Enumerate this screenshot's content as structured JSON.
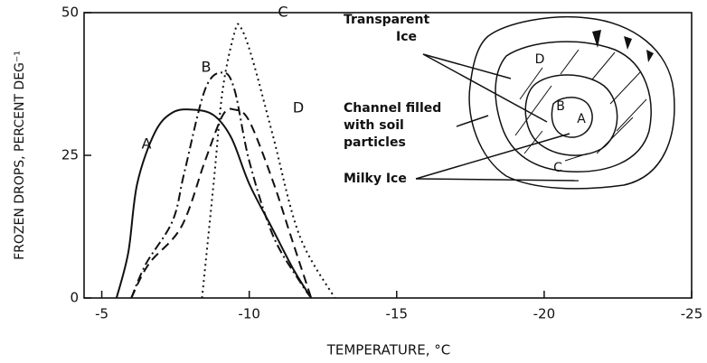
{
  "chart_data": {
    "type": "line",
    "x_label": "TEMPERATURE, °C",
    "y_label": "FROZEN DROPS, PERCENT DEG⁻¹",
    "xlim": [
      -4.4,
      -25
    ],
    "xticks": [
      -5,
      -10,
      -15,
      -20,
      -25
    ],
    "ylim": [
      0,
      50
    ],
    "yticks": [
      0,
      25,
      50
    ],
    "series": [
      {
        "name": "A",
        "color": "#111111",
        "dash": "solid",
        "x": [
          -5.5,
          -5.9,
          -6.2,
          -6.8,
          -7.4,
          -8.1,
          -8.8,
          -9.4,
          -10.0,
          -10.8,
          -11.5,
          -12.1
        ],
        "values": [
          0,
          8,
          20,
          29,
          32.5,
          33,
          32,
          28,
          20,
          12,
          5,
          0
        ]
      },
      {
        "name": "B",
        "color": "#111111",
        "dash": "dashdot",
        "x": [
          -6.0,
          -6.5,
          -7.4,
          -7.8,
          -8.5,
          -9.1,
          -9.5,
          -10.0,
          -10.8,
          -11.7,
          -12.1
        ],
        "values": [
          0,
          6,
          13.5,
          22,
          36.5,
          39.5,
          36.5,
          24,
          11,
          3,
          0
        ]
      },
      {
        "name": "C",
        "color": "#111111",
        "dash": "dotted",
        "x": [
          -8.4,
          -8.8,
          -9.1,
          -9.5,
          -9.7,
          -10.1,
          -10.8,
          -11.7,
          -12.9
        ],
        "values": [
          0,
          20.5,
          36.5,
          46.5,
          47.5,
          42,
          28.5,
          11,
          0
        ]
      },
      {
        "name": "D",
        "color": "#111111",
        "dash": "dashed",
        "x": [
          -6.0,
          -6.6,
          -7.7,
          -8.5,
          -9.1,
          -9.5,
          -10.0,
          -10.8,
          -11.4,
          -12.1
        ],
        "values": [
          0,
          6,
          12.5,
          24,
          32,
          33,
          31,
          20.5,
          11,
          0
        ]
      }
    ],
    "inset_labels": [
      {
        "lines": [
          "Transparent",
          "Ice"
        ]
      },
      {
        "lines": [
          "Channel filled",
          "with soil",
          "particles"
        ]
      },
      {
        "lines": [
          "Milky Ice"
        ]
      }
    ]
  }
}
